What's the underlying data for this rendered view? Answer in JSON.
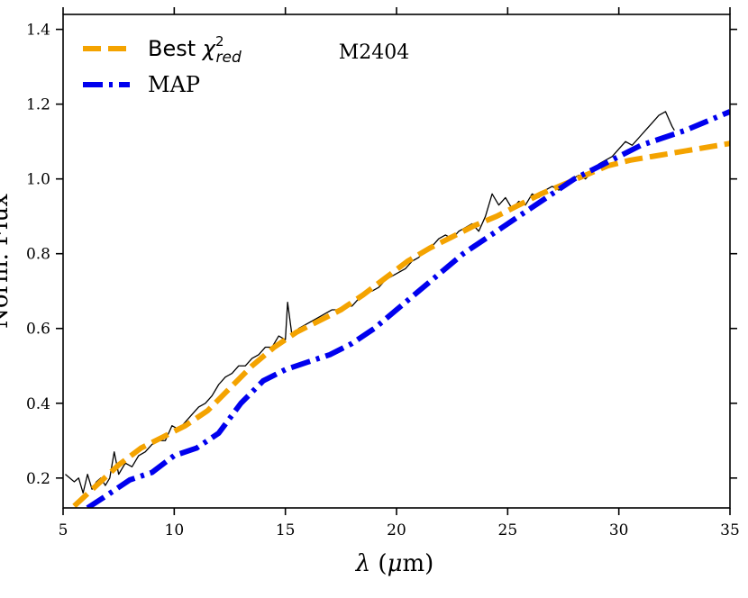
{
  "chart_data": {
    "type": "line",
    "title": "",
    "xlabel": "λ (μm)",
    "ylabel": "Norm. Flux",
    "xlim": [
      5,
      35
    ],
    "ylim": [
      0.12,
      1.44
    ],
    "xticks": [
      5,
      10,
      15,
      20,
      25,
      30,
      35
    ],
    "yticks": [
      0.2,
      0.4,
      0.6,
      0.8,
      1.0,
      1.2,
      1.4
    ],
    "xtick_labels": [
      "5",
      "10",
      "15",
      "20",
      "25",
      "30",
      "35"
    ],
    "ytick_labels": [
      "0.2",
      "0.4",
      "0.6",
      "0.8",
      "1.0",
      "1.2",
      "1.4"
    ],
    "annotation": "M2404",
    "legend": {
      "position": "top-left",
      "entries": [
        {
          "label_main": "Best ",
          "label_chi": "χ",
          "label_sup": "2",
          "label_sub": "red",
          "series": "best"
        },
        {
          "label_main": "MAP",
          "series": "map"
        }
      ]
    },
    "series": [
      {
        "name": "Spectrum",
        "color": "#000000",
        "style": "solid",
        "x": [
          5.1,
          5.3,
          5.5,
          5.7,
          5.9,
          6.1,
          6.3,
          6.5,
          6.7,
          6.9,
          7.1,
          7.3,
          7.5,
          7.8,
          8.1,
          8.4,
          8.7,
          9.0,
          9.3,
          9.6,
          9.9,
          10.2,
          10.5,
          10.8,
          11.1,
          11.4,
          11.7,
          12.0,
          12.3,
          12.6,
          12.9,
          13.2,
          13.5,
          13.8,
          14.1,
          14.4,
          14.7,
          15.0,
          15.1,
          15.3,
          15.6,
          15.9,
          16.2,
          16.5,
          16.8,
          17.1,
          17.4,
          17.7,
          18.0,
          18.3,
          18.6,
          18.9,
          19.2,
          19.5,
          19.8,
          20.1,
          20.4,
          20.7,
          21.0,
          21.3,
          21.6,
          21.9,
          22.2,
          22.5,
          22.8,
          23.1,
          23.4,
          23.7,
          24.0,
          24.3,
          24.6,
          24.9,
          25.2,
          25.5,
          25.8,
          26.1,
          26.4,
          26.7,
          27.0,
          27.3,
          27.6,
          27.9,
          28.2,
          28.5,
          28.8,
          29.1,
          29.4,
          29.7,
          30.0,
          30.3,
          30.6,
          30.9,
          31.2,
          31.5,
          31.8,
          32.1,
          32.4,
          32.5
        ],
        "y": [
          0.21,
          0.2,
          0.19,
          0.2,
          0.16,
          0.21,
          0.17,
          0.19,
          0.2,
          0.18,
          0.2,
          0.27,
          0.21,
          0.24,
          0.23,
          0.26,
          0.27,
          0.29,
          0.3,
          0.3,
          0.34,
          0.33,
          0.35,
          0.37,
          0.39,
          0.4,
          0.42,
          0.45,
          0.47,
          0.48,
          0.5,
          0.5,
          0.52,
          0.53,
          0.55,
          0.55,
          0.58,
          0.57,
          0.67,
          0.58,
          0.6,
          0.61,
          0.62,
          0.63,
          0.64,
          0.65,
          0.65,
          0.66,
          0.66,
          0.68,
          0.7,
          0.7,
          0.71,
          0.73,
          0.74,
          0.75,
          0.76,
          0.78,
          0.79,
          0.81,
          0.82,
          0.84,
          0.85,
          0.84,
          0.86,
          0.87,
          0.88,
          0.86,
          0.9,
          0.96,
          0.93,
          0.95,
          0.92,
          0.94,
          0.93,
          0.96,
          0.95,
          0.97,
          0.98,
          0.97,
          0.98,
          1.0,
          1.01,
          1.0,
          1.02,
          1.04,
          1.05,
          1.06,
          1.08,
          1.1,
          1.09,
          1.11,
          1.13,
          1.15,
          1.17,
          1.18,
          1.14,
          1.13
        ]
      },
      {
        "name": "Best χ²red",
        "color": "#F4A300",
        "style": "dashed",
        "x": [
          5.5,
          6.5,
          7.5,
          8.5,
          9.5,
          10.5,
          11.5,
          12.5,
          13.5,
          14.5,
          15.5,
          16.5,
          17.5,
          18.5,
          19.5,
          20.5,
          21.5,
          22.5,
          23.5,
          24.5,
          25.5,
          26.5,
          27.5,
          28.5,
          29.5,
          30.5,
          31.5,
          32.5,
          33.5,
          35.0
        ],
        "y": [
          0.125,
          0.18,
          0.235,
          0.28,
          0.31,
          0.34,
          0.38,
          0.44,
          0.5,
          0.55,
          0.59,
          0.62,
          0.65,
          0.69,
          0.735,
          0.78,
          0.815,
          0.845,
          0.875,
          0.9,
          0.93,
          0.96,
          0.985,
          1.01,
          1.035,
          1.05,
          1.06,
          1.07,
          1.08,
          1.095
        ]
      },
      {
        "name": "MAP",
        "color": "#0000EE",
        "style": "dashdot",
        "x": [
          6.1,
          7.0,
          8.0,
          9.0,
          10.0,
          11.0,
          12.0,
          13.0,
          14.0,
          15.0,
          16.0,
          17.0,
          18.0,
          19.0,
          20.0,
          21.0,
          22.0,
          23.0,
          24.0,
          25.0,
          26.0,
          27.0,
          28.0,
          29.0,
          30.0,
          31.0,
          32.0,
          33.0,
          34.0,
          35.0
        ],
        "y": [
          0.12,
          0.155,
          0.195,
          0.215,
          0.26,
          0.28,
          0.32,
          0.4,
          0.46,
          0.49,
          0.51,
          0.53,
          0.56,
          0.6,
          0.65,
          0.7,
          0.75,
          0.8,
          0.84,
          0.88,
          0.92,
          0.96,
          1.0,
          1.03,
          1.06,
          1.09,
          1.11,
          1.13,
          1.155,
          1.18
        ]
      }
    ]
  }
}
